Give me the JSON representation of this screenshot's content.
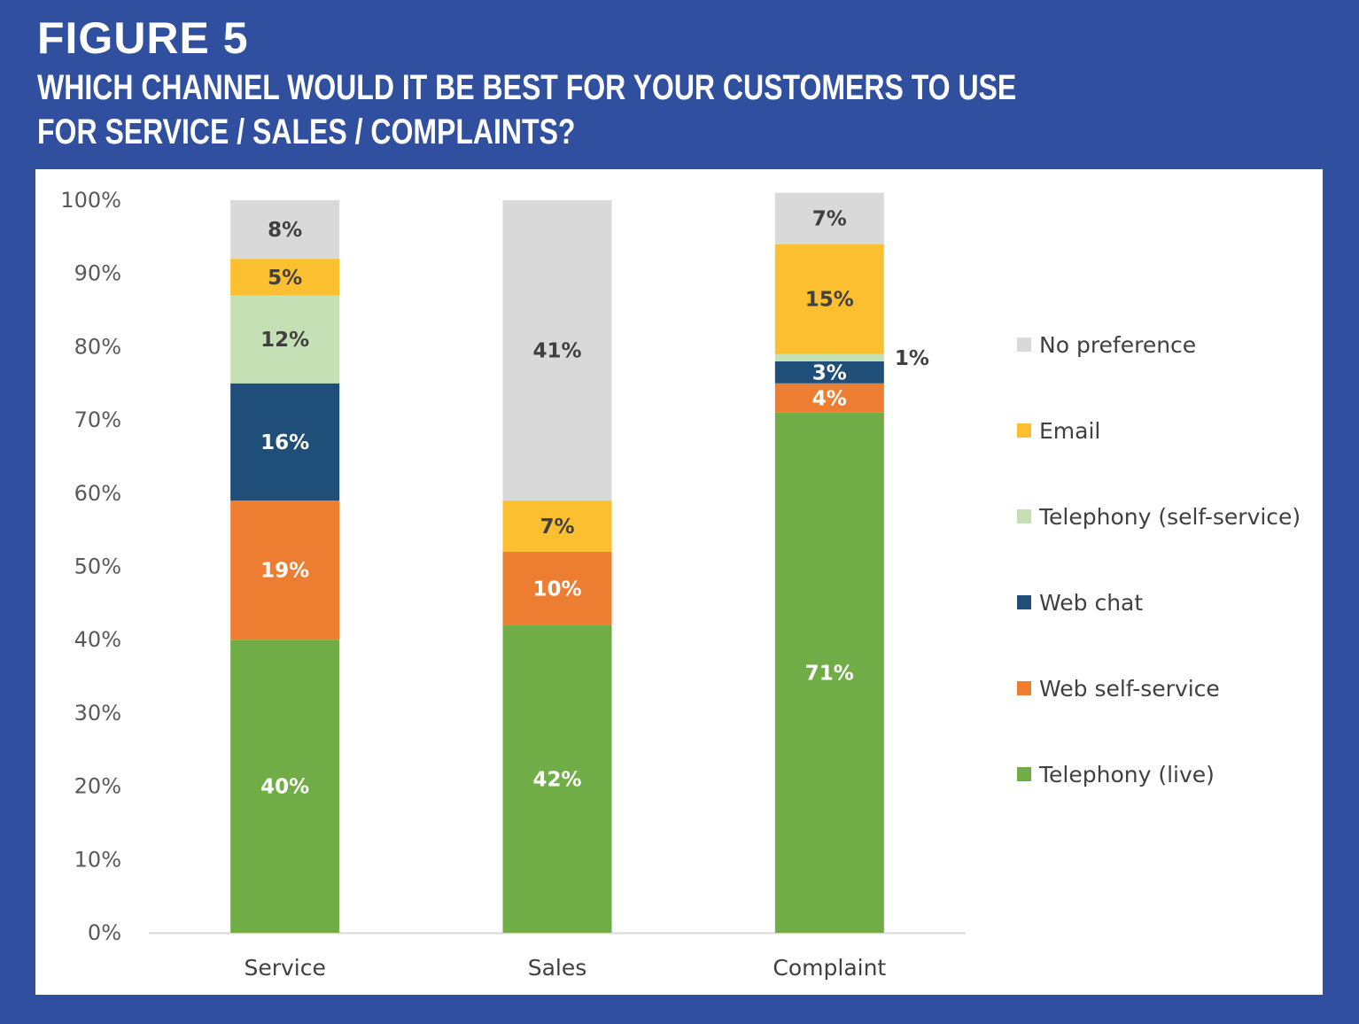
{
  "figure": {
    "label": "FIGURE 5",
    "title": "WHICH CHANNEL WOULD IT BE BEST FOR YOUR CUSTOMERS TO USE FOR SERVICE / SALES / COMPLAINTS?"
  },
  "colors": {
    "background": "#304f9e",
    "panel": "#ffffff"
  },
  "chart_data": {
    "type": "bar",
    "stacked": true,
    "categories": [
      "Service",
      "Sales",
      "Complaint"
    ],
    "ylim": [
      0,
      100
    ],
    "yticks": [
      "0%",
      "10%",
      "20%",
      "30%",
      "40%",
      "50%",
      "60%",
      "70%",
      "80%",
      "90%",
      "100%"
    ],
    "series": [
      {
        "name": "Telephony (live)",
        "color": "#70ad47",
        "label_color": "#ffffff",
        "values": [
          40,
          42,
          71
        ],
        "labels": [
          "40%",
          "42%",
          "71%"
        ]
      },
      {
        "name": "Web self-service",
        "color": "#ed7d31",
        "label_color": "#ffffff",
        "values": [
          19,
          10,
          4
        ],
        "labels": [
          "19%",
          "10%",
          "4%"
        ]
      },
      {
        "name": "Web chat",
        "color": "#1f4e79",
        "label_color": "#ffffff",
        "values": [
          16,
          0,
          3
        ],
        "labels": [
          "16%",
          "",
          "3%"
        ]
      },
      {
        "name": "Telephony (self-service)",
        "color": "#c5e0b4",
        "label_color": "#404040",
        "values": [
          12,
          0,
          1
        ],
        "labels": [
          "12%",
          "",
          "1%"
        ]
      },
      {
        "name": "Email",
        "color": "#fbbf2f",
        "label_color": "#404040",
        "values": [
          5,
          7,
          15
        ],
        "labels": [
          "5%",
          "7%",
          "15%"
        ]
      },
      {
        "name": "No preference",
        "color": "#d9d9d9",
        "label_color": "#404040",
        "values": [
          8,
          41,
          7
        ],
        "labels": [
          "8%",
          "41%",
          "7%"
        ]
      }
    ],
    "legend": [
      "No preference",
      "Email",
      "Telephony (self-service)",
      "Web chat",
      "Web self-service",
      "Telephony (live)"
    ],
    "legend_position": "right",
    "title": "",
    "xlabel": "",
    "ylabel": ""
  }
}
